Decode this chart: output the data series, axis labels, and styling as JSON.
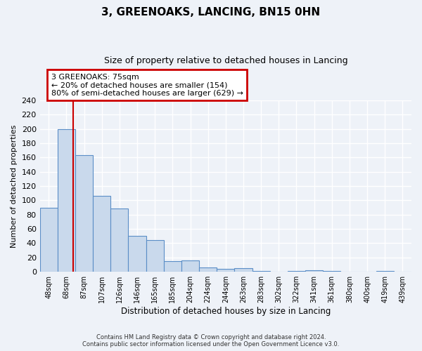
{
  "title": "3, GREENOAKS, LANCING, BN15 0HN",
  "subtitle": "Size of property relative to detached houses in Lancing",
  "xlabel": "Distribution of detached houses by size in Lancing",
  "ylabel": "Number of detached properties",
  "bin_labels": [
    "48sqm",
    "68sqm",
    "87sqm",
    "107sqm",
    "126sqm",
    "146sqm",
    "165sqm",
    "185sqm",
    "204sqm",
    "224sqm",
    "244sqm",
    "263sqm",
    "283sqm",
    "302sqm",
    "322sqm",
    "341sqm",
    "361sqm",
    "380sqm",
    "400sqm",
    "419sqm",
    "439sqm"
  ],
  "bar_heights": [
    90,
    200,
    163,
    106,
    89,
    50,
    44,
    15,
    16,
    6,
    4,
    5,
    1,
    0,
    1,
    2,
    1,
    0,
    0,
    1,
    0
  ],
  "bar_color": "#c9d9ec",
  "bar_edge_color": "#5b8ec7",
  "red_line_x": 1.4,
  "ylim": [
    0,
    240
  ],
  "yticks": [
    0,
    20,
    40,
    60,
    80,
    100,
    120,
    140,
    160,
    180,
    200,
    220,
    240
  ],
  "annotation_title": "3 GREENOAKS: 75sqm",
  "annotation_line1": "← 20% of detached houses are smaller (154)",
  "annotation_line2": "80% of semi-detached houses are larger (629) →",
  "annotation_box_color": "#ffffff",
  "annotation_box_edge": "#cc0000",
  "footer1": "Contains HM Land Registry data © Crown copyright and database right 2024.",
  "footer2": "Contains public sector information licensed under the Open Government Licence v3.0.",
  "bg_color": "#eef2f8",
  "plot_bg_color": "#eef2f8",
  "grid_color": "#ffffff"
}
